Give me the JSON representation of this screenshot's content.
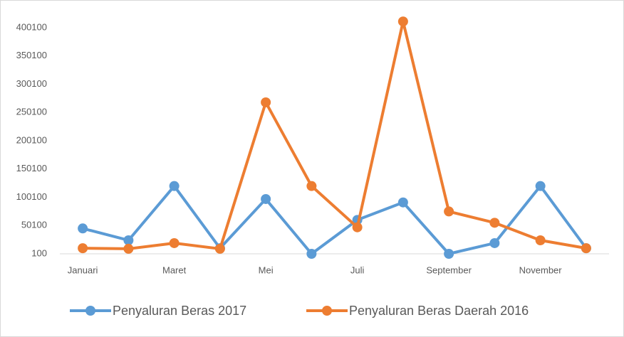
{
  "chart_data": {
    "type": "line",
    "categories": [
      "Januari",
      null,
      "Maret",
      null,
      "Mei",
      null,
      "Juli",
      null,
      "September",
      null,
      "November",
      null
    ],
    "series": [
      {
        "name": "Penyaluran Beras 2017",
        "color": "#5b9bd5",
        "values": [
          45000,
          24000,
          120000,
          10000,
          97000,
          100,
          60000,
          91000,
          100,
          19000,
          120000,
          10000
        ]
      },
      {
        "name": "Penyaluran Beras Daerah 2016",
        "color": "#ed7d31",
        "values": [
          10000,
          9000,
          19000,
          9000,
          268000,
          120000,
          47000,
          411000,
          75000,
          55000,
          24000,
          10000
        ]
      }
    ],
    "ylim": [
      100,
      420100
    ],
    "yticks": [
      100,
      50100,
      100100,
      150100,
      200100,
      250100,
      300100,
      350100,
      400100
    ],
    "grid": false
  }
}
